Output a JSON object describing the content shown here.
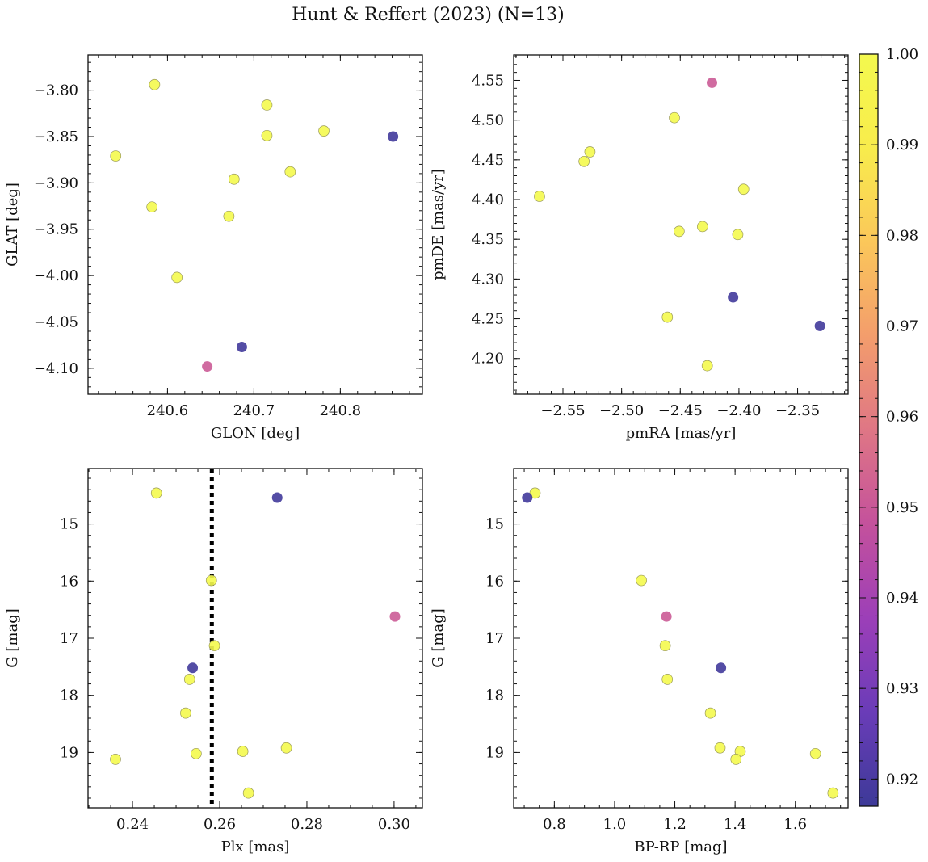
{
  "title": "Hunt & Reffert (2023) (N=13)",
  "colorbar": {
    "range": [
      0.917,
      1.0
    ],
    "ticks": [
      0.92,
      0.93,
      0.94,
      0.95,
      0.96,
      0.97,
      0.98,
      0.99,
      1.0
    ],
    "tick_labels": [
      "0.92",
      "0.93",
      "0.94",
      "0.95",
      "0.96",
      "0.97",
      "0.98",
      "0.99",
      "1.00"
    ],
    "colormap": "plasma",
    "colormap_stops": [
      "#3d3a98",
      "#6a3cb8",
      "#9c3fb8",
      "#c4519c",
      "#df7685",
      "#f39d6c",
      "#fbc75a",
      "#f8ec4c",
      "#f4f94e"
    ]
  },
  "chart_data": [
    {
      "type": "scatter",
      "id": "sky",
      "xlabel": "GLON [deg]",
      "ylabel": "GLAT [deg]",
      "xlim": [
        240.508,
        240.895
      ],
      "ylim": [
        -4.128,
        -3.762
      ],
      "y_inverted": false,
      "xticks": [
        240.6,
        240.7,
        240.8
      ],
      "xtick_labels": [
        "240.6",
        "240.7",
        "240.8"
      ],
      "yticks": [
        -3.8,
        -3.85,
        -3.9,
        -3.95,
        -4.0,
        -4.05,
        -4.1
      ],
      "ytick_labels": [
        "−3.80",
        "−3.85",
        "−3.90",
        "−3.95",
        "−4.00",
        "−4.05",
        "−4.10"
      ],
      "x": [
        240.54,
        240.585,
        240.582,
        240.611,
        240.646,
        240.671,
        240.677,
        240.686,
        240.715,
        240.715,
        240.742,
        240.781,
        240.861
      ],
      "y": [
        -3.871,
        -3.794,
        -3.926,
        -4.002,
        -4.098,
        -3.936,
        -3.896,
        -4.077,
        -3.816,
        -3.849,
        -3.888,
        -3.844,
        -3.85
      ],
      "color_values": [
        1.0,
        1.0,
        1.0,
        1.0,
        0.951,
        1.0,
        1.0,
        0.918,
        1.0,
        1.0,
        1.0,
        1.0,
        0.918
      ]
    },
    {
      "type": "scatter",
      "id": "pm",
      "xlabel": "pmRA [mas/yr]",
      "ylabel": "pmDE [mas/yr]",
      "xlim": [
        -2.592,
        -2.307
      ],
      "ylim": [
        4.155,
        4.582
      ],
      "y_inverted": false,
      "xticks": [
        -2.55,
        -2.5,
        -2.45,
        -2.4,
        -2.35
      ],
      "xtick_labels": [
        "−2.55",
        "−2.50",
        "−2.45",
        "−2.40",
        "−2.35"
      ],
      "yticks": [
        4.2,
        4.25,
        4.3,
        4.35,
        4.4,
        4.45,
        4.5,
        4.55
      ],
      "ytick_labels": [
        "4.20",
        "4.25",
        "4.30",
        "4.35",
        "4.40",
        "4.45",
        "4.50",
        "4.55"
      ],
      "x": [
        -2.57,
        -2.532,
        -2.527,
        -2.461,
        -2.455,
        -2.451,
        -2.431,
        -2.427,
        -2.423,
        -2.405,
        -2.401,
        -2.396,
        -2.331
      ],
      "y": [
        4.404,
        4.448,
        4.46,
        4.252,
        4.503,
        4.36,
        4.366,
        4.191,
        4.547,
        4.277,
        4.356,
        4.413,
        4.241
      ],
      "color_values": [
        1.0,
        1.0,
        1.0,
        1.0,
        1.0,
        1.0,
        1.0,
        1.0,
        0.951,
        0.918,
        1.0,
        1.0,
        0.918
      ]
    },
    {
      "type": "scatter",
      "id": "plx",
      "xlabel": "Plx [mas]",
      "ylabel": "G [mag]",
      "xlim": [
        0.2298,
        0.3065
      ],
      "ylim": [
        19.97,
        14.03
      ],
      "y_inverted": true,
      "xticks": [
        0.24,
        0.26,
        0.28,
        0.3
      ],
      "xtick_labels": [
        "0.24",
        "0.26",
        "0.28",
        "0.30"
      ],
      "yticks": [
        15,
        16,
        17,
        18,
        19
      ],
      "ytick_labels": [
        "15",
        "16",
        "17",
        "18",
        "19"
      ],
      "reference_line": {
        "x": 0.2582,
        "style": "dotted"
      },
      "x": [
        0.2455,
        0.2732,
        0.2581,
        0.3002,
        0.2588,
        0.2538,
        0.2531,
        0.2522,
        0.2753,
        0.2653,
        0.2546,
        0.2361,
        0.2666
      ],
      "y": [
        14.46,
        14.54,
        15.99,
        16.62,
        17.13,
        17.52,
        17.72,
        18.31,
        18.92,
        18.98,
        19.02,
        19.12,
        19.71
      ],
      "color_values": [
        1.0,
        0.918,
        1.0,
        0.951,
        1.0,
        0.918,
        1.0,
        1.0,
        1.0,
        1.0,
        1.0,
        1.0,
        1.0
      ]
    },
    {
      "type": "scatter",
      "id": "cmd",
      "xlabel": "BP-RP [mag]",
      "ylabel": "G [mag]",
      "xlim": [
        0.665,
        1.775
      ],
      "ylim": [
        19.97,
        14.03
      ],
      "y_inverted": true,
      "xticks": [
        0.8,
        1.0,
        1.2,
        1.4,
        1.6
      ],
      "xtick_labels": [
        "0.8",
        "1.0",
        "1.2",
        "1.4",
        "1.6"
      ],
      "yticks": [
        15,
        16,
        17,
        18,
        19
      ],
      "ytick_labels": [
        "15",
        "16",
        "17",
        "18",
        "19"
      ],
      "x": [
        0.736,
        0.71,
        1.089,
        1.172,
        1.168,
        1.353,
        1.175,
        1.318,
        1.35,
        1.417,
        1.667,
        1.403,
        1.725
      ],
      "y": [
        14.46,
        14.54,
        15.99,
        16.62,
        17.13,
        17.52,
        17.72,
        18.31,
        18.92,
        18.98,
        19.02,
        19.12,
        19.71
      ],
      "color_values": [
        1.0,
        0.918,
        1.0,
        0.951,
        1.0,
        0.918,
        1.0,
        1.0,
        1.0,
        1.0,
        1.0,
        1.0,
        1.0
      ]
    }
  ]
}
